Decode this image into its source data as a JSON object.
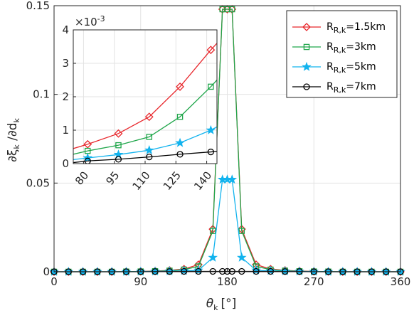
{
  "chart_data": {
    "type": "line",
    "xlabel_main": "θ",
    "xlabel_sub": "k",
    "xlabel_unit": "[°]",
    "ylabel_main": "∂ξ",
    "ylabel_sub1": "k",
    "ylabel_mid": " /∂d",
    "ylabel_sub2": "k",
    "xlim": [
      0,
      360
    ],
    "ylim": [
      0,
      0.15
    ],
    "xticks": [
      0,
      90,
      180,
      270,
      360
    ],
    "yticks": [
      0,
      0.05,
      0.1,
      0.15
    ],
    "ytick_labels": [
      "0",
      "0.05",
      "0.1",
      "0.15"
    ],
    "grid": true,
    "legend_position": "top-right",
    "x": [
      0,
      15,
      30,
      45,
      60,
      75,
      90,
      105,
      120,
      135,
      150,
      165,
      175,
      180,
      185,
      195,
      210,
      225,
      240,
      255,
      270,
      285,
      300,
      315,
      330,
      345,
      360
    ],
    "series": [
      {
        "name_main": "R",
        "name_sub": "R,k",
        "name_suffix": "=1.5km",
        "color": "#e8262b",
        "marker": "diamond",
        "values": [
          0,
          0,
          0,
          0,
          0,
          0.0001,
          0.0002,
          0.0004,
          0.0008,
          0.0015,
          0.004,
          0.024,
          0.148,
          0.148,
          0.148,
          0.024,
          0.004,
          0.0015,
          0.0008,
          0.0004,
          0.0002,
          0.0001,
          0,
          0,
          0,
          0,
          0
        ]
      },
      {
        "name_main": "R",
        "name_sub": "R,k",
        "name_suffix": "=3km",
        "color": "#1fa64a",
        "marker": "square",
        "values": [
          0,
          0,
          0,
          0,
          0,
          0.0001,
          0.00015,
          0.0003,
          0.0006,
          0.0012,
          0.003,
          0.023,
          0.148,
          0.148,
          0.148,
          0.023,
          0.003,
          0.0012,
          0.0006,
          0.0003,
          0.00015,
          0.0001,
          0,
          0,
          0,
          0,
          0
        ]
      },
      {
        "name_main": "R",
        "name_sub": "R,k",
        "name_suffix": "=5km",
        "color": "#12b3ee",
        "marker": "star",
        "values": [
          0,
          0,
          0,
          0,
          0,
          0,
          0.0001,
          0.0002,
          0.0003,
          0.0005,
          0.0008,
          0.008,
          0.052,
          0.052,
          0.052,
          0.008,
          0.0008,
          0.0005,
          0.0003,
          0.0002,
          0.0001,
          0,
          0,
          0,
          0,
          0,
          0
        ]
      },
      {
        "name_main": "R",
        "name_sub": "R,k",
        "name_suffix": "=7km",
        "color": "#000000",
        "marker": "circle",
        "values": [
          0,
          0,
          0,
          0,
          0,
          0,
          0,
          0.0001,
          0.0001,
          0.0002,
          0.0002,
          0.0002,
          0.0002,
          0.0002,
          0.0002,
          0.0002,
          0.0002,
          0.0002,
          0.0001,
          0.0001,
          0,
          0,
          0,
          0,
          0,
          0,
          0
        ]
      }
    ],
    "inset": {
      "xlim": [
        75,
        145
      ],
      "ylim": [
        0,
        0.004
      ],
      "xticks": [
        80,
        95,
        110,
        125,
        140
      ],
      "yticks": [
        0,
        1,
        2,
        3,
        4
      ],
      "y_exponent": "×10",
      "y_exponent_power": "-3",
      "grid": true,
      "x": [
        75,
        82,
        97,
        112,
        127,
        142,
        145
      ],
      "series_values": [
        [
          0.00045,
          0.00058,
          0.0009,
          0.0014,
          0.0023,
          0.0034,
          0.0036
        ],
        [
          0.00028,
          0.00038,
          0.00055,
          0.0008,
          0.0014,
          0.0023,
          0.0025
        ],
        [
          0.00012,
          0.00017,
          0.00027,
          0.0004,
          0.00062,
          0.001,
          0.0011
        ],
        [
          3e-05,
          8e-05,
          0.00013,
          0.0002,
          0.00028,
          0.00035,
          0.00037
        ]
      ]
    }
  }
}
